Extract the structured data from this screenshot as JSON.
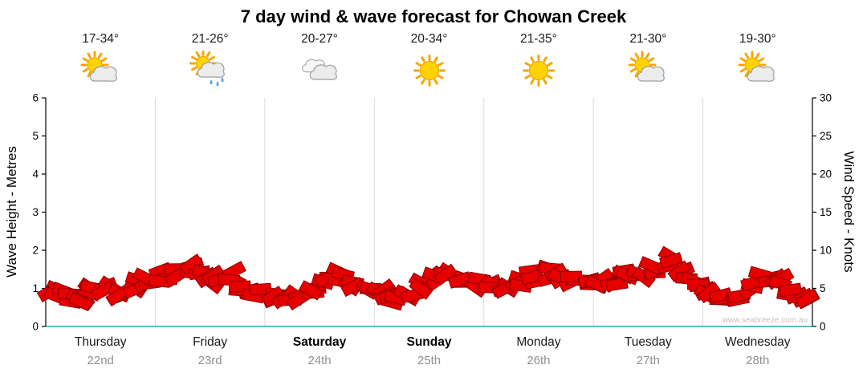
{
  "title": "7 day wind & wave forecast for Chowan Creek",
  "watermark": "www.seabreeze.com.au",
  "colors": {
    "wind_fill": "#e60000",
    "wind_outline": "#8f0000",
    "grid": "#dcdcdc",
    "axis": "#000000",
    "baseline_teal": "#35a3a3",
    "date_gray": "#8f8f8f",
    "sun_core": "#ffd200",
    "sun_ray": "#f7a600",
    "cloud_fill": "#ececec",
    "cloud_stroke": "#9e9e9e",
    "rain_drop": "#4fa8e8"
  },
  "axes": {
    "left_label": "Wave Height - Metres",
    "right_label": "Wind Speed - Knots",
    "left_ticks": [
      0,
      1,
      2,
      3,
      4,
      5,
      6
    ],
    "right_ticks": [
      0,
      5,
      10,
      15,
      20,
      25,
      30
    ],
    "left_range": [
      0,
      6
    ],
    "right_range": [
      0,
      30
    ]
  },
  "days": [
    {
      "name": "Thursday",
      "date": "22nd",
      "temp": "17-34°",
      "icon": "sun-cloud",
      "weekend": false
    },
    {
      "name": "Friday",
      "date": "23rd",
      "temp": "21-26°",
      "icon": "sun-cloud-rain",
      "weekend": false
    },
    {
      "name": "Saturday",
      "date": "24th",
      "temp": "20-27°",
      "icon": "cloud",
      "weekend": true
    },
    {
      "name": "Sunday",
      "date": "25th",
      "temp": "20-34°",
      "icon": "sun",
      "weekend": true
    },
    {
      "name": "Monday",
      "date": "26th",
      "temp": "21-35°",
      "icon": "sun",
      "weekend": false
    },
    {
      "name": "Tuesday",
      "date": "27th",
      "temp": "21-30°",
      "icon": "sun-cloud",
      "weekend": false
    },
    {
      "name": "Wednesday",
      "date": "28th",
      "temp": "19-30°",
      "icon": "sun-cloud",
      "weekend": false
    }
  ],
  "chart_data": {
    "type": "area",
    "title": "7 day wind & wave forecast for Chowan Creek",
    "ylabel_left": "Wave Height - Metres",
    "ylabel_right": "Wind Speed - Knots",
    "ylim_left_metres": [
      0,
      6
    ],
    "ylim_right_knots": [
      0,
      30
    ],
    "grid": "vertical lines at day boundaries",
    "legend": "none",
    "x_categories": [
      "Thursday 22nd",
      "Friday 23rd",
      "Saturday 24th",
      "Sunday 25th",
      "Monday 26th",
      "Tuesday 27th",
      "Wednesday 28th"
    ],
    "points_per_day": 8,
    "series": [
      {
        "name": "Wind Speed",
        "unit": "knots",
        "values_per_day": [
          [
            4.2,
            4.0,
            3.6,
            4.4,
            5.2,
            4.6,
            5.4,
            6.2
          ],
          [
            6.6,
            7.2,
            7.6,
            6.8,
            6.2,
            6.6,
            5.2,
            4.6
          ],
          [
            4.0,
            3.4,
            3.8,
            4.6,
            6.2,
            6.6,
            5.6,
            5.0
          ],
          [
            4.4,
            3.8,
            3.6,
            5.4,
            6.6,
            6.8,
            6.2,
            5.6
          ],
          [
            5.0,
            4.6,
            5.6,
            6.6,
            7.0,
            6.6,
            6.0,
            5.6
          ],
          [
            5.6,
            6.2,
            6.6,
            7.2,
            7.6,
            8.6,
            7.0,
            6.0
          ],
          [
            5.0,
            4.2,
            3.8,
            5.0,
            6.4,
            6.0,
            4.6,
            3.2
          ]
        ]
      }
    ]
  }
}
